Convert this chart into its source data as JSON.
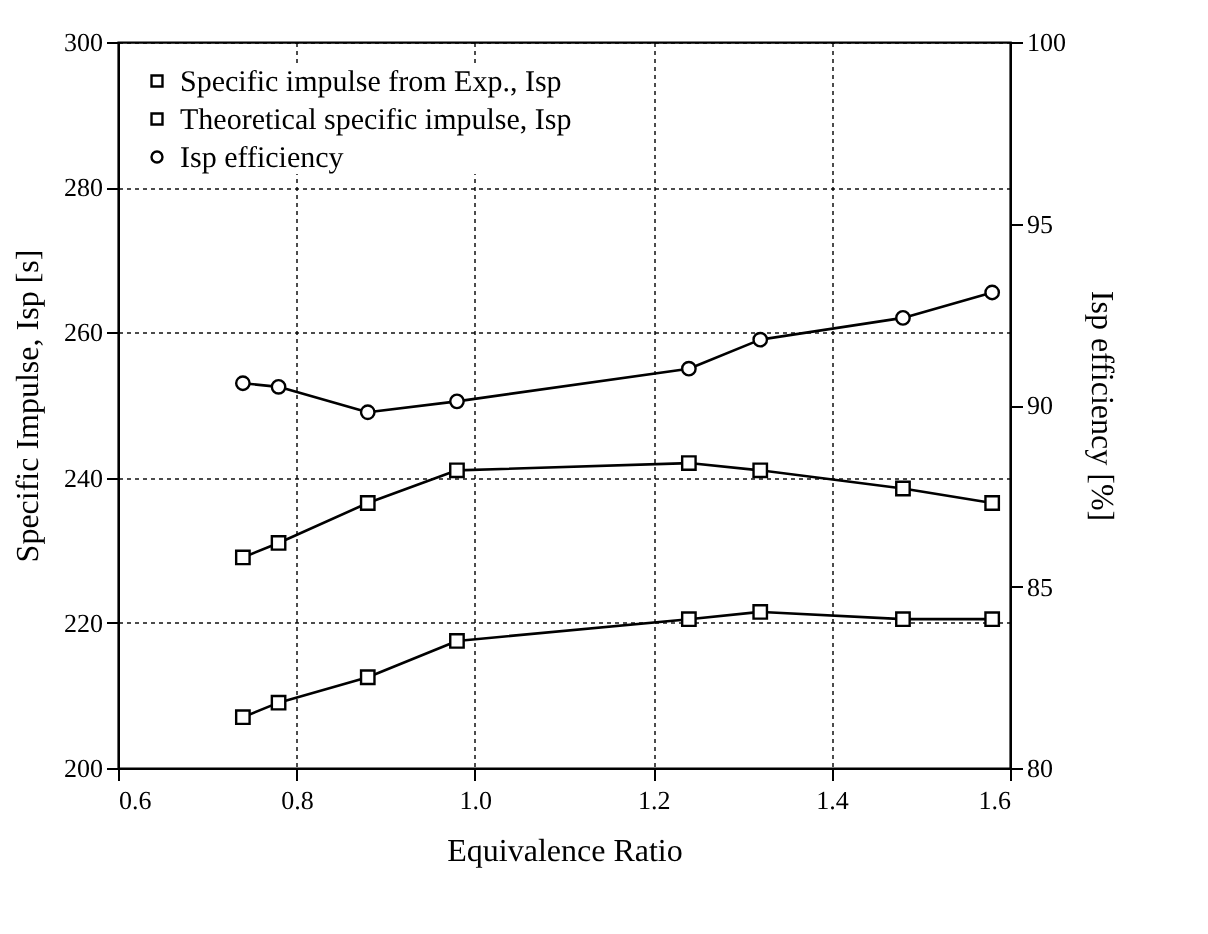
{
  "chart_data": {
    "type": "line",
    "xlabel": "Equivalence Ratio",
    "ylabel": "Specific Impulse, Isp [s]",
    "y2label": "Isp efficiency [%]",
    "x": [
      0.74,
      0.78,
      0.88,
      0.98,
      1.24,
      1.32,
      1.48,
      1.58
    ],
    "series": [
      {
        "name": "Specific impulse from Exp., Isp",
        "color": "#000000",
        "marker": "square",
        "values": [
          207,
          209,
          212.5,
          217.5,
          220.5,
          221.5,
          220.5,
          220.5
        ]
      },
      {
        "name": "Theoretical specific impulse, Isp",
        "color": "#000000",
        "marker": "square",
        "values": [
          229,
          231,
          236.5,
          241,
          242,
          241,
          238.5,
          236.5
        ]
      },
      {
        "name": "Isp efficiency",
        "color": "#000000",
        "marker": "circle",
        "axis": "y2",
        "values": [
          90.6,
          90.5,
          89.8,
          90.1,
          91.0,
          91.8,
          92.4,
          93.1
        ]
      }
    ],
    "xlim": [
      0.6,
      1.6
    ],
    "xticks": [
      {
        "value": 0.6,
        "label": "0.6"
      },
      {
        "value": 0.8,
        "label": "0.8"
      },
      {
        "value": 1.0,
        "label": "1.0"
      },
      {
        "value": 1.2,
        "label": "1.2"
      },
      {
        "value": 1.4,
        "label": "1.4"
      },
      {
        "value": 1.6,
        "label": "1.6"
      }
    ],
    "ylim": [
      200,
      300
    ],
    "yticks": [
      200,
      220,
      240,
      260,
      280,
      300
    ],
    "y2lim": [
      80,
      100
    ],
    "y2ticks": [
      80,
      85,
      90,
      95,
      100
    ],
    "grid": true,
    "legend": "top left",
    "line_style": "solid"
  }
}
